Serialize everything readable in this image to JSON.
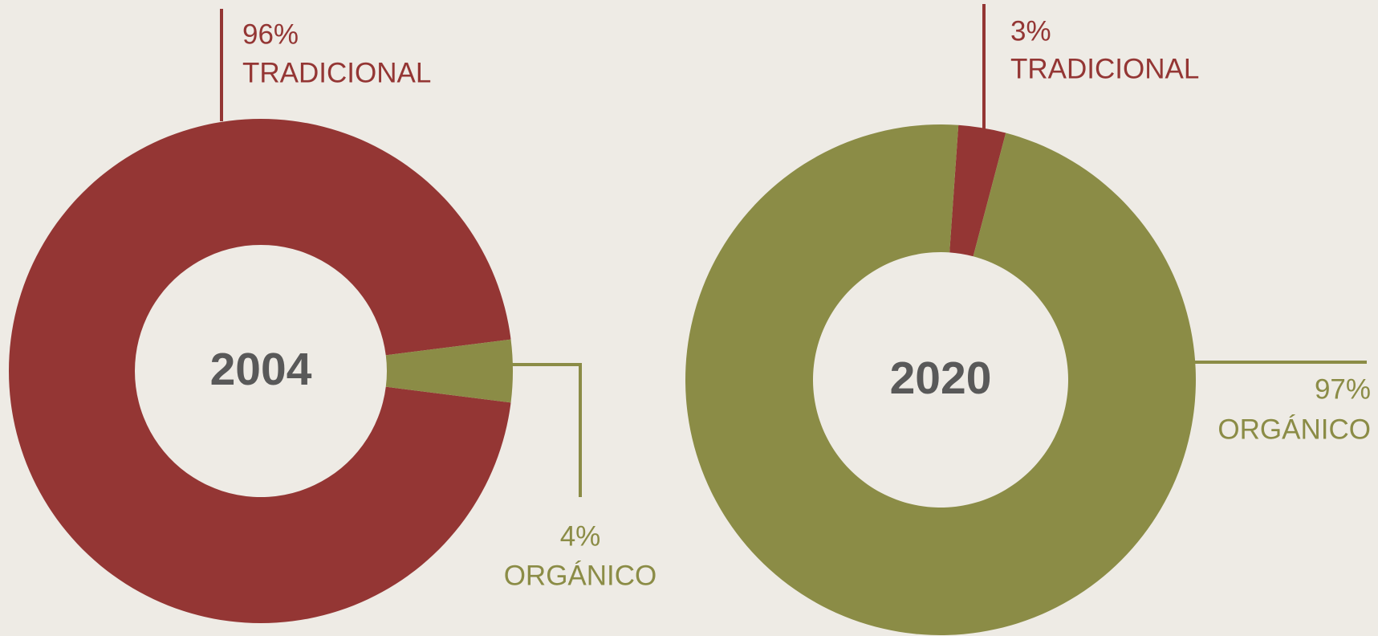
{
  "chart_data": [
    {
      "type": "pie",
      "title": "2004",
      "categories": [
        "TRADICIONAL",
        "ORGÁNICO"
      ],
      "values": [
        96,
        4
      ],
      "value_labels": [
        "96%",
        "4%"
      ],
      "colors": [
        "#943634",
        "#8b8c46"
      ]
    },
    {
      "type": "pie",
      "title": "2020",
      "categories": [
        "TRADICIONAL",
        "ORGÁNICO"
      ],
      "values": [
        3,
        97
      ],
      "value_labels": [
        "3%",
        "97%"
      ],
      "colors": [
        "#943634",
        "#8b8c46"
      ]
    }
  ]
}
